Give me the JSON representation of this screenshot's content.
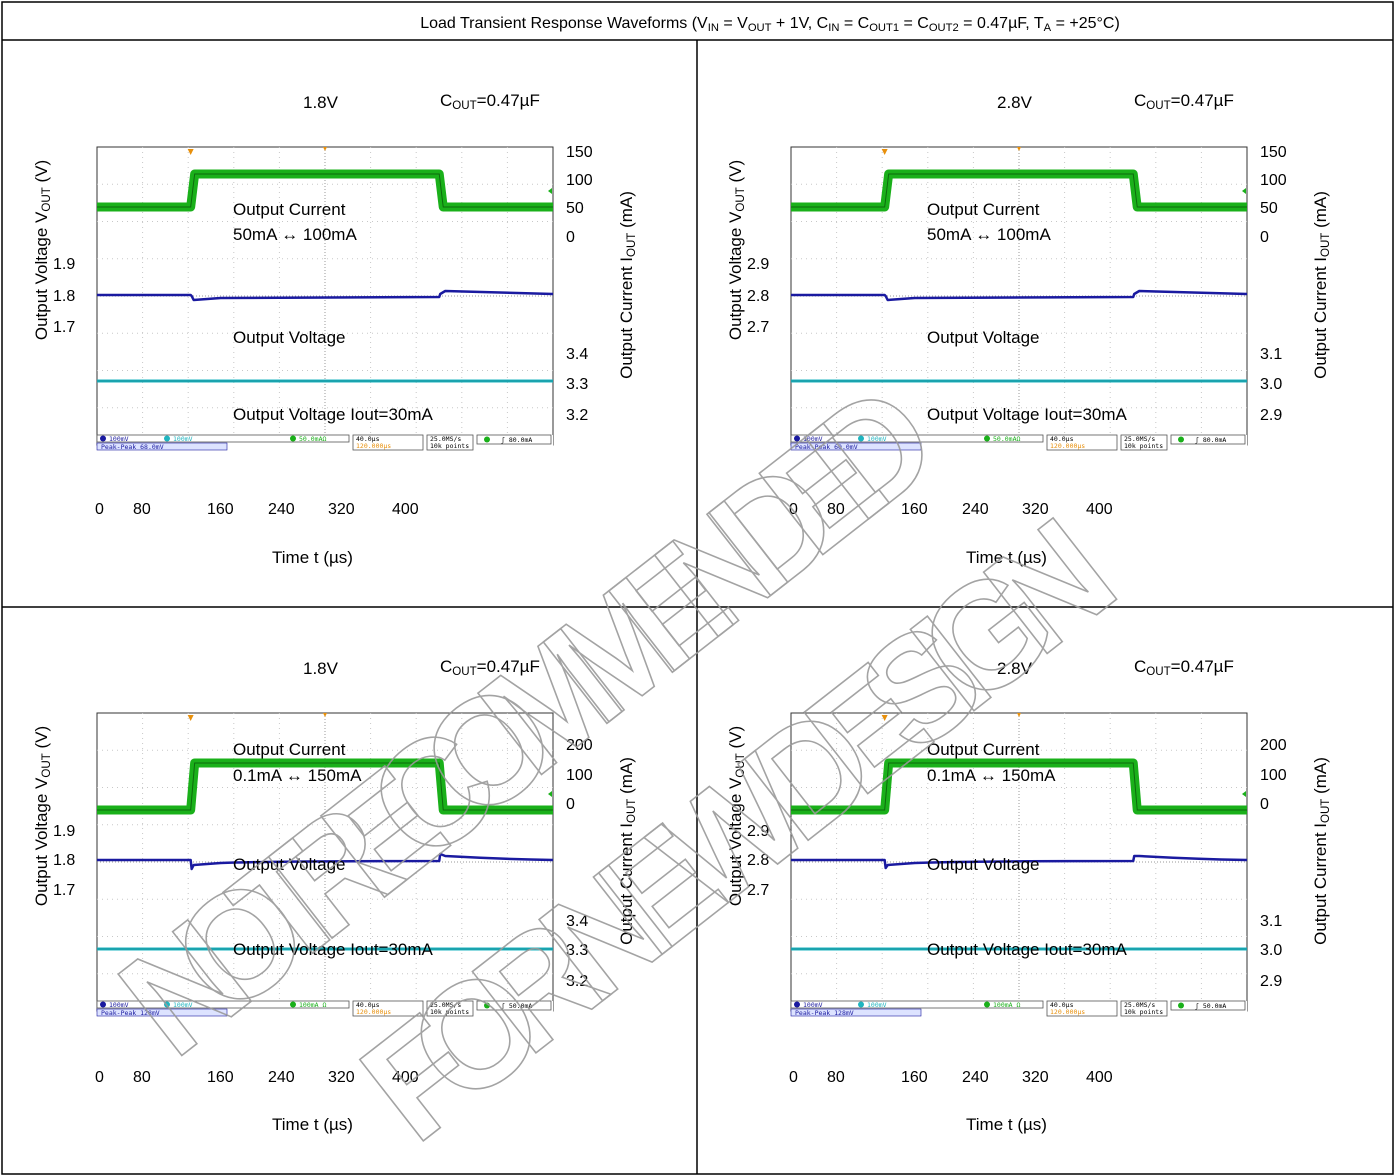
{
  "title_parts": [
    {
      "t": "Load Transient Response Waveforms (V"
    },
    {
      "t": "IN",
      "sub": true
    },
    {
      "t": " = V"
    },
    {
      "t": "OUT",
      "sub": true
    },
    {
      "t": " + 1V, C"
    },
    {
      "t": "IN",
      "sub": true
    },
    {
      "t": " = C"
    },
    {
      "t": "OUT1",
      "sub": true
    },
    {
      "t": " = C"
    },
    {
      "t": "OUT2",
      "sub": true
    },
    {
      "t": " = 0.47µF, T"
    },
    {
      "t": "A",
      "sub": true
    },
    {
      "t": " = +25°C)"
    }
  ],
  "watermark": [
    "NOT RECOMMENDED",
    "FOR NEW DESIGN"
  ],
  "colors": {
    "current_trace": "#1ab01a",
    "current_trace_edge": "#0c6a0c",
    "voltage_trace": "#1a1aa0",
    "voltage2_trace": "#1fb5c0",
    "trigger_marker": "#e8900c",
    "grid": "#c8c8c8"
  },
  "chart_data": [
    {
      "type": "line",
      "panel": "top-left",
      "vout_label": "1.8V",
      "cout_label": "C",
      "cout_sub": "OUT",
      "cout_value": "=0.47µF",
      "left_axis_title": "Output Voltage V",
      "left_axis_sub": "OUT",
      "left_axis_unit": " (V)",
      "right_axis_title": "Output Current I",
      "right_axis_sub": "OUT",
      "right_axis_unit": " (mA)",
      "xlabel": "Time t (µs)",
      "xticks": [
        "0",
        "80",
        "160",
        "240",
        "320",
        "400"
      ],
      "current_ticks": [
        "150",
        "100",
        "50",
        "0"
      ],
      "voltage_ticks": [
        "1.9",
        "1.8",
        "1.7"
      ],
      "voltage2_ticks": [
        "3.4",
        "3.3",
        "3.2"
      ],
      "current_label_1": "Output Current",
      "current_label_2": "50mA ↔ 100mA",
      "voltage_label": "Output Voltage",
      "voltage2_label": "Output Voltage Iout=30mA",
      "current_mA": {
        "low": 50,
        "high": 100,
        "step_up_us": 124,
        "step_down_us": 404
      },
      "vout_V": {
        "nominal": 1.8,
        "dip_V": 1.765,
        "overshoot_V": 1.815
      },
      "vout2_V": {
        "nominal": 3.3
      },
      "scope_status": {
        "ch1": "100mV",
        "ch2": "100mV",
        "ch4": "50.0mAΩ",
        "timebase": "40.0µs",
        "trigger_pos": "120.000µs",
        "sample_rate": "25.0MS/s",
        "record": "10k points",
        "trigger": "80.0mA",
        "measure": "Peak-Peak   68.0mV"
      }
    },
    {
      "type": "line",
      "panel": "top-right",
      "vout_label": "2.8V",
      "cout_label": "C",
      "cout_sub": "OUT",
      "cout_value": "=0.47µF",
      "left_axis_title": "Output Voltage V",
      "left_axis_sub": "OUT",
      "left_axis_unit": " (V)",
      "right_axis_title": "Output Current I",
      "right_axis_sub": "OUT",
      "right_axis_unit": " (mA)",
      "xlabel": "Time t (µs)",
      "xticks": [
        "0",
        "80",
        "160",
        "240",
        "320",
        "400"
      ],
      "current_ticks": [
        "150",
        "100",
        "50",
        "0"
      ],
      "voltage_ticks": [
        "2.9",
        "2.8",
        "2.7"
      ],
      "voltage2_ticks": [
        "3.1",
        "3.0",
        "2.9"
      ],
      "current_label_1": "Output Current",
      "current_label_2": "50mA ↔ 100mA",
      "voltage_label": "Output Voltage",
      "voltage2_label": "Output Voltage Iout=30mA",
      "current_mA": {
        "low": 50,
        "high": 100,
        "step_up_us": 124,
        "step_down_us": 404
      },
      "vout_V": {
        "nominal": 2.8,
        "dip_V": 2.77,
        "overshoot_V": 2.81
      },
      "vout2_V": {
        "nominal": 3.0
      },
      "scope_status": {
        "ch1": "100mV",
        "ch2": "100mV",
        "ch4": "50.0mAΩ",
        "timebase": "40.0µs",
        "trigger_pos": "120.000µs",
        "sample_rate": "25.0MS/s",
        "record": "10k points",
        "trigger": "80.0mA",
        "measure": "Peak-Peak   60.0mV"
      }
    },
    {
      "type": "line",
      "panel": "bottom-left",
      "vout_label": "1.8V",
      "cout_label": "C",
      "cout_sub": "OUT",
      "cout_value": "=0.47µF",
      "left_axis_title": "Output Voltage V",
      "left_axis_sub": "OUT",
      "left_axis_unit": " (V)",
      "right_axis_title": "Output Current I",
      "right_axis_sub": "OUT",
      "right_axis_unit": " (mA)",
      "xlabel": "Time t (µs)",
      "xticks": [
        "0",
        "80",
        "160",
        "240",
        "320",
        "400"
      ],
      "current_ticks": [
        "200",
        "100",
        "0"
      ],
      "voltage_ticks": [
        "1.9",
        "1.8",
        "1.7"
      ],
      "voltage2_ticks": [
        "3.4",
        "3.3",
        "3.2"
      ],
      "current_label_1": "Output Current",
      "current_label_2": "0.1mA ↔ 150mA",
      "voltage_label": "Output Voltage",
      "voltage2_label": "Output Voltage Iout=30mA",
      "current_mA": {
        "low": 0.1,
        "high": 150,
        "step_up_us": 124,
        "step_down_us": 404
      },
      "vout_V": {
        "nominal": 1.8,
        "dip_V": 1.71,
        "overshoot_V": 1.83
      },
      "vout2_V": {
        "nominal": 3.3
      },
      "scope_status": {
        "ch1": "100mV",
        "ch2": "100mV",
        "ch4": "100mA Ω",
        "timebase": "40.0µs",
        "trigger_pos": "120.000µs",
        "sample_rate": "25.0MS/s",
        "record": "10k points",
        "trigger": "50.0mA",
        "measure": "Peak-Peak   128mV"
      }
    },
    {
      "type": "line",
      "panel": "bottom-right",
      "vout_label": "2.8V",
      "cout_label": "C",
      "cout_sub": "OUT",
      "cout_value": "=0.47µF",
      "left_axis_title": "Output Voltage V",
      "left_axis_sub": "OUT",
      "left_axis_unit": " (V)",
      "right_axis_title": "Output Current I",
      "right_axis_sub": "OUT",
      "right_axis_unit": " (mA)",
      "xlabel": "Time t (µs)",
      "xticks": [
        "0",
        "80",
        "160",
        "240",
        "320",
        "400"
      ],
      "current_ticks": [
        "200",
        "100",
        "0"
      ],
      "voltage_ticks": [
        "2.9",
        "2.8",
        "2.7"
      ],
      "voltage2_ticks": [
        "3.1",
        "3.0",
        "2.9"
      ],
      "current_label_1": "Output Current",
      "current_label_2": "0.1mA ↔ 150mA",
      "voltage_label": "Output Voltage",
      "voltage2_label": "Output Voltage Iout=30mA",
      "current_mA": {
        "low": 0.1,
        "high": 150,
        "step_up_us": 124,
        "step_down_us": 404
      },
      "vout_V": {
        "nominal": 2.8,
        "dip_V": 2.72,
        "overshoot_V": 2.82
      },
      "vout2_V": {
        "nominal": 3.0
      },
      "scope_status": {
        "ch1": "100mV",
        "ch2": "100mV",
        "ch4": "100mA Ω",
        "timebase": "40.0µs",
        "trigger_pos": "120.000µs",
        "sample_rate": "25.0MS/s",
        "record": "10k points",
        "trigger": "50.0mA",
        "measure": "Peak-Peak   128mV"
      }
    }
  ]
}
